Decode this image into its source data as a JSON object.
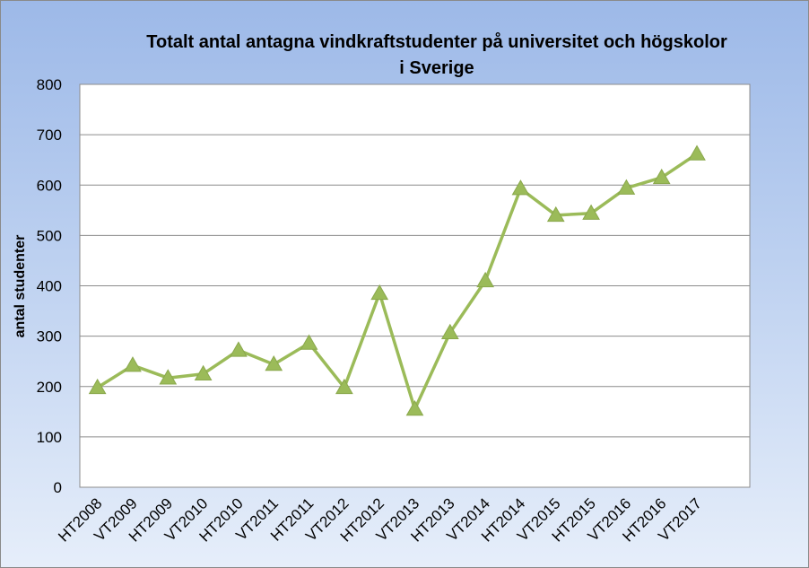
{
  "chart_data": {
    "type": "line",
    "title_line1": "Totalt antal antagna vindkraftstudenter på universitet och högskolor",
    "title_line2": "i Sverige",
    "xlabel": "",
    "ylabel": "antal studenter",
    "ylim": [
      0,
      800
    ],
    "yticks": [
      "0",
      "100",
      "200",
      "300",
      "400",
      "500",
      "600",
      "700",
      "800"
    ],
    "grid": true,
    "legend": "none",
    "categories": [
      "HT2008",
      "VT2009",
      "HT2009",
      "VT2010",
      "HT2010",
      "VT2011",
      "HT2011",
      "VT2012",
      "HT2012",
      "VT2013",
      "HT2013",
      "VT2014",
      "HT2014",
      "VT2015",
      "HT2015",
      "VT2016",
      "HT2016",
      "VT2017"
    ],
    "series": [
      {
        "color": "#9bbb59",
        "marker": "triangle",
        "values": [
          198,
          242,
          217,
          225,
          272,
          244,
          286,
          198,
          385,
          155,
          307,
          410,
          593,
          540,
          544,
          594,
          615,
          662
        ]
      }
    ]
  }
}
